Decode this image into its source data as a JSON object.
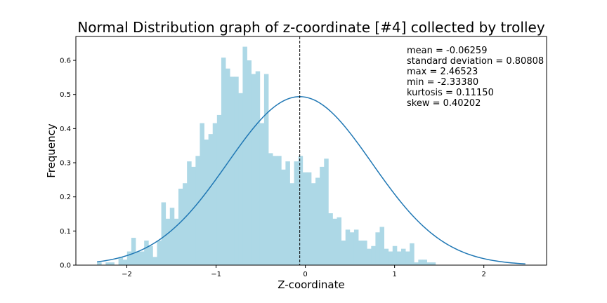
{
  "chart_data": {
    "type": "bar",
    "title": "Normal Distribution graph of z-coordinate [#4] collected by trolley",
    "xlabel": "Z-coordinate",
    "ylabel": "Frequency",
    "xlim": [
      -2.571,
      2.703
    ],
    "ylim": [
      0,
      0.67
    ],
    "x_ticks": [
      -2,
      -1,
      0,
      1,
      2
    ],
    "x_tick_labels": [
      "−2",
      "−1",
      "0",
      "1",
      "2"
    ],
    "y_ticks": [
      0.0,
      0.1,
      0.2,
      0.3,
      0.4,
      0.5,
      0.6
    ],
    "y_tick_labels": [
      "0.0",
      "0.1",
      "0.2",
      "0.3",
      "0.4",
      "0.5",
      "0.6"
    ],
    "histogram": {
      "bin_start": -2.3338,
      "bin_width": 0.04799,
      "color": "#add8e6",
      "values": [
        0.008,
        0.0,
        0.008,
        0.008,
        0.0,
        0.024,
        0.016,
        0.04,
        0.08,
        0.04,
        0.04,
        0.072,
        0.056,
        0.024,
        0.072,
        0.184,
        0.136,
        0.168,
        0.136,
        0.224,
        0.24,
        0.304,
        0.288,
        0.32,
        0.416,
        0.368,
        0.384,
        0.416,
        0.44,
        0.608,
        0.576,
        0.552,
        0.552,
        0.504,
        0.64,
        0.6,
        0.56,
        0.568,
        0.416,
        0.56,
        0.328,
        0.32,
        0.32,
        0.28,
        0.304,
        0.24,
        0.304,
        0.32,
        0.272,
        0.272,
        0.24,
        0.256,
        0.288,
        0.312,
        0.152,
        0.136,
        0.14,
        0.072,
        0.104,
        0.096,
        0.104,
        0.072,
        0.072,
        0.048,
        0.056,
        0.096,
        0.112,
        0.048,
        0.04,
        0.056,
        0.04,
        0.048,
        0.04,
        0.064,
        0.008,
        0.016,
        0.016,
        0.008,
        0.008,
        0.0,
        0.0,
        0.0,
        0.0,
        0.0,
        0.0,
        0.0,
        0.0,
        0.0,
        0.0,
        0.0,
        0.0,
        0.0,
        0.0,
        0.0,
        0.0,
        0.0,
        0.0,
        0.0,
        0.0,
        0.0
      ]
    },
    "pdf_curve": {
      "mean": -0.06259,
      "std": 0.80808,
      "color": "#1f77b4"
    },
    "mean_line": {
      "x": -0.06259,
      "style": "dashed",
      "color": "#000000"
    },
    "grid": false,
    "stats": [
      "mean = -0.06259",
      "standard deviation = 0.80808",
      "max = 2.46523",
      "min = -2.33380",
      "kurtosis = 0.11150",
      "skew = 0.40202"
    ]
  }
}
